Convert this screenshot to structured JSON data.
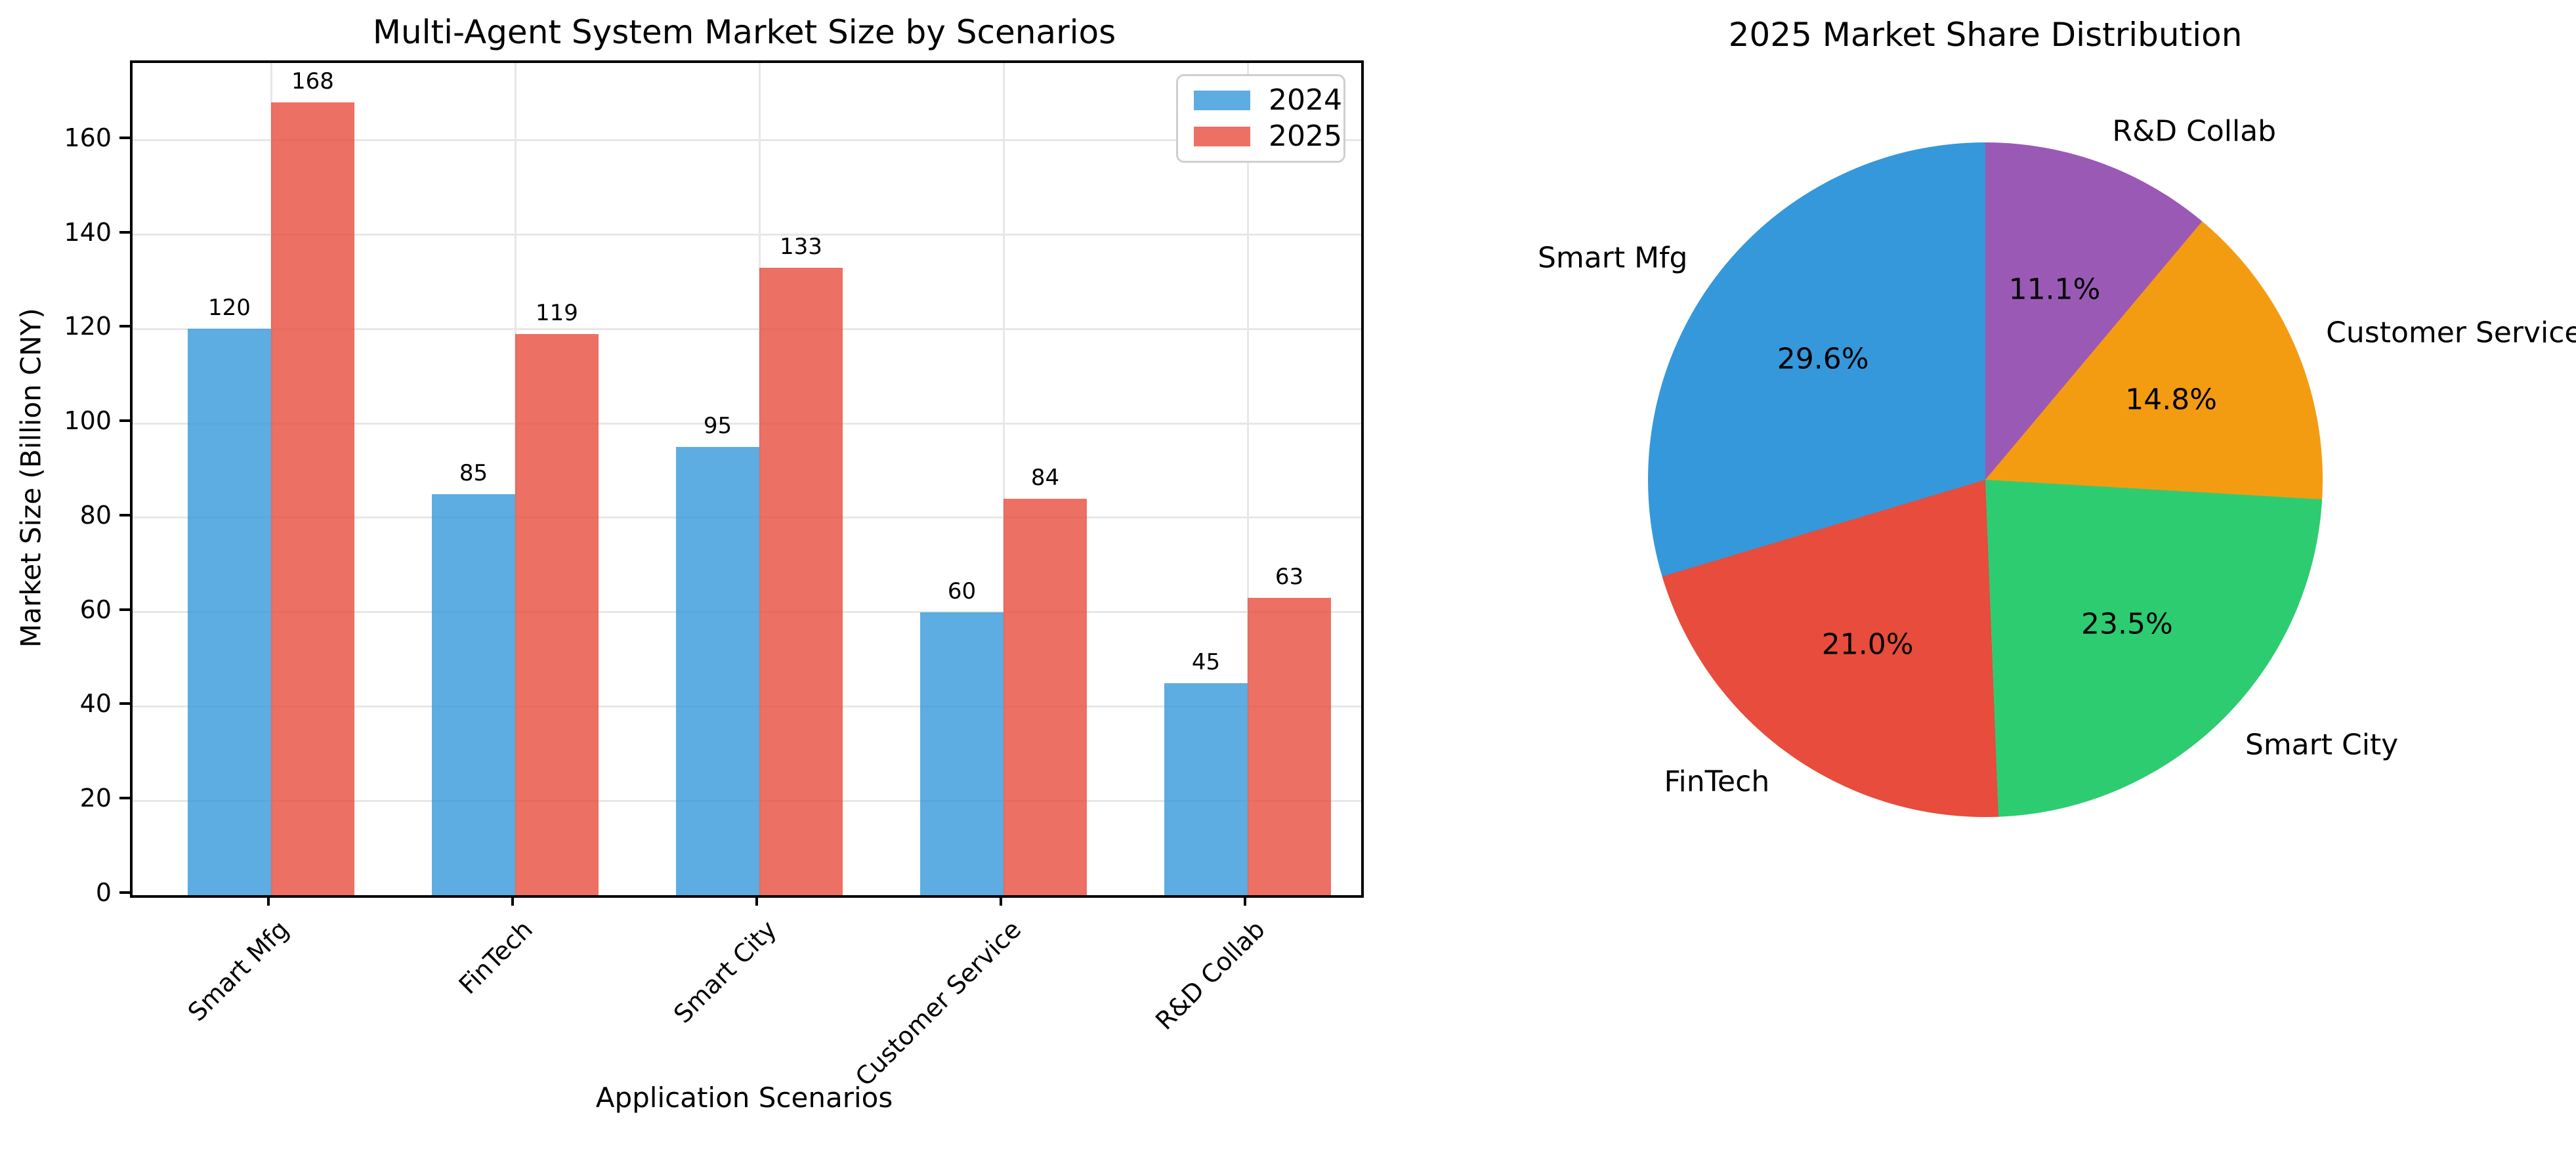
{
  "chart_data": [
    {
      "type": "bar",
      "title": "Multi-Agent System Market Size by Scenarios",
      "xlabel": "Application Scenarios",
      "ylabel": "Market Size (Billion CNY)",
      "categories": [
        "Smart Mfg",
        "FinTech",
        "Smart City",
        "Customer Service",
        "R&D Collab"
      ],
      "series": [
        {
          "name": "2024",
          "color": "#3498db",
          "values": [
            120,
            85,
            95,
            60,
            45
          ]
        },
        {
          "name": "2025",
          "color": "#e74c3c",
          "values": [
            168,
            119,
            133,
            84,
            63
          ]
        }
      ],
      "bar_alpha": 0.8,
      "ylim": [
        0,
        176.4
      ],
      "yticks": [
        0,
        20,
        40,
        60,
        80,
        100,
        120,
        140,
        160
      ],
      "grid": true,
      "legend_position": "upper right"
    },
    {
      "type": "pie",
      "title": "2025 Market Share Distribution",
      "labels": [
        "Smart Mfg",
        "FinTech",
        "Smart City",
        "Customer Service",
        "R&D Collab"
      ],
      "values": [
        168,
        119,
        133,
        84,
        63
      ],
      "percent_labels": [
        "29.6%",
        "21.0%",
        "23.5%",
        "14.8%",
        "11.1%"
      ],
      "colors": [
        "#3498db",
        "#e74c3c",
        "#2ecc71",
        "#f39c12",
        "#9b59b6"
      ],
      "start_angle": 90,
      "counterclock": true,
      "label_distance": 1.1,
      "pct_distance": 0.6
    }
  ]
}
